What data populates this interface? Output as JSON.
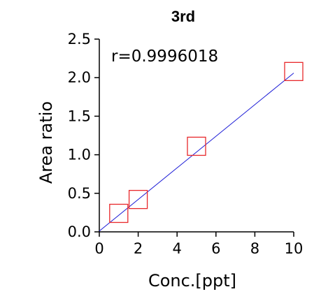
{
  "chart_data": {
    "type": "scatter",
    "title": "3rd",
    "xlabel": "Conc.[ppt]",
    "ylabel": "Area ratio",
    "annotation": "r=0.9996018",
    "xlim": [
      0,
      10
    ],
    "ylim": [
      0,
      2.5
    ],
    "x_ticks": [
      "0",
      "2",
      "4",
      "6",
      "8",
      "10"
    ],
    "y_ticks": [
      "0.0",
      "0.5",
      "1.0",
      "1.5",
      "2.0",
      "2.5"
    ],
    "points": [
      {
        "x": 1,
        "y": 0.24
      },
      {
        "x": 2,
        "y": 0.42
      },
      {
        "x": 5,
        "y": 1.11
      },
      {
        "x": 10,
        "y": 2.08
      }
    ],
    "fit_line": {
      "x": [
        0,
        10
      ],
      "y": [
        0.01,
        2.06
      ]
    },
    "marker_color": "#e8282b",
    "line_color": "#1a1ad6",
    "grid": false
  }
}
